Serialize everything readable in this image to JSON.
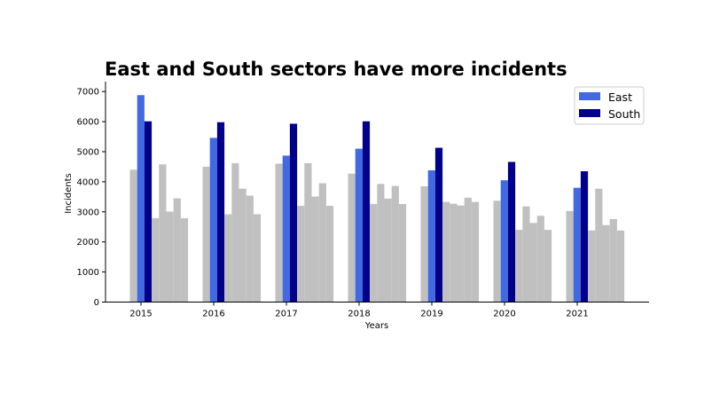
{
  "chart_data": {
    "type": "bar",
    "title": "East and South sectors have more incidents",
    "xlabel": "Years",
    "ylabel": "Incidents",
    "ylim": [
      0,
      7200
    ],
    "yticks": [
      0,
      1000,
      2000,
      3000,
      4000,
      5000,
      6000,
      7000
    ],
    "categories": [
      "2015",
      "2016",
      "2017",
      "2018",
      "2019",
      "2020",
      "2021"
    ],
    "series": [
      {
        "name": "",
        "color": "#c0c0c0",
        "values": [
          4400,
          4500,
          4600,
          4270,
          3850,
          3370,
          3030
        ]
      },
      {
        "name": "East",
        "color": "#4169e1",
        "values": [
          6880,
          5460,
          4870,
          5100,
          4380,
          4050,
          3800
        ]
      },
      {
        "name": "South",
        "color": "#00008b",
        "values": [
          6010,
          5980,
          5930,
          6010,
          5130,
          4660,
          4350
        ]
      },
      {
        "name": "",
        "color": "#c0c0c0",
        "values": [
          2790,
          2920,
          3200,
          3260,
          3330,
          2400,
          2380
        ]
      },
      {
        "name": "",
        "color": "#c0c0c0",
        "values": [
          4580,
          4620,
          4620,
          3930,
          3270,
          3180,
          3770
        ]
      },
      {
        "name": "",
        "color": "#c0c0c0",
        "values": [
          3010,
          3770,
          3510,
          3440,
          3210,
          2630,
          2560
        ]
      },
      {
        "name": "",
        "color": "#c0c0c0",
        "values": [
          3450,
          3540,
          3950,
          3860,
          3470,
          2870,
          2760
        ]
      },
      {
        "name": "",
        "color": "#c0c0c0",
        "values": [
          2790,
          2920,
          3200,
          3260,
          3330,
          2400,
          2380
        ]
      }
    ],
    "legend": {
      "position": "top-right",
      "entries": [
        "East",
        "South"
      ]
    },
    "grid": false
  }
}
